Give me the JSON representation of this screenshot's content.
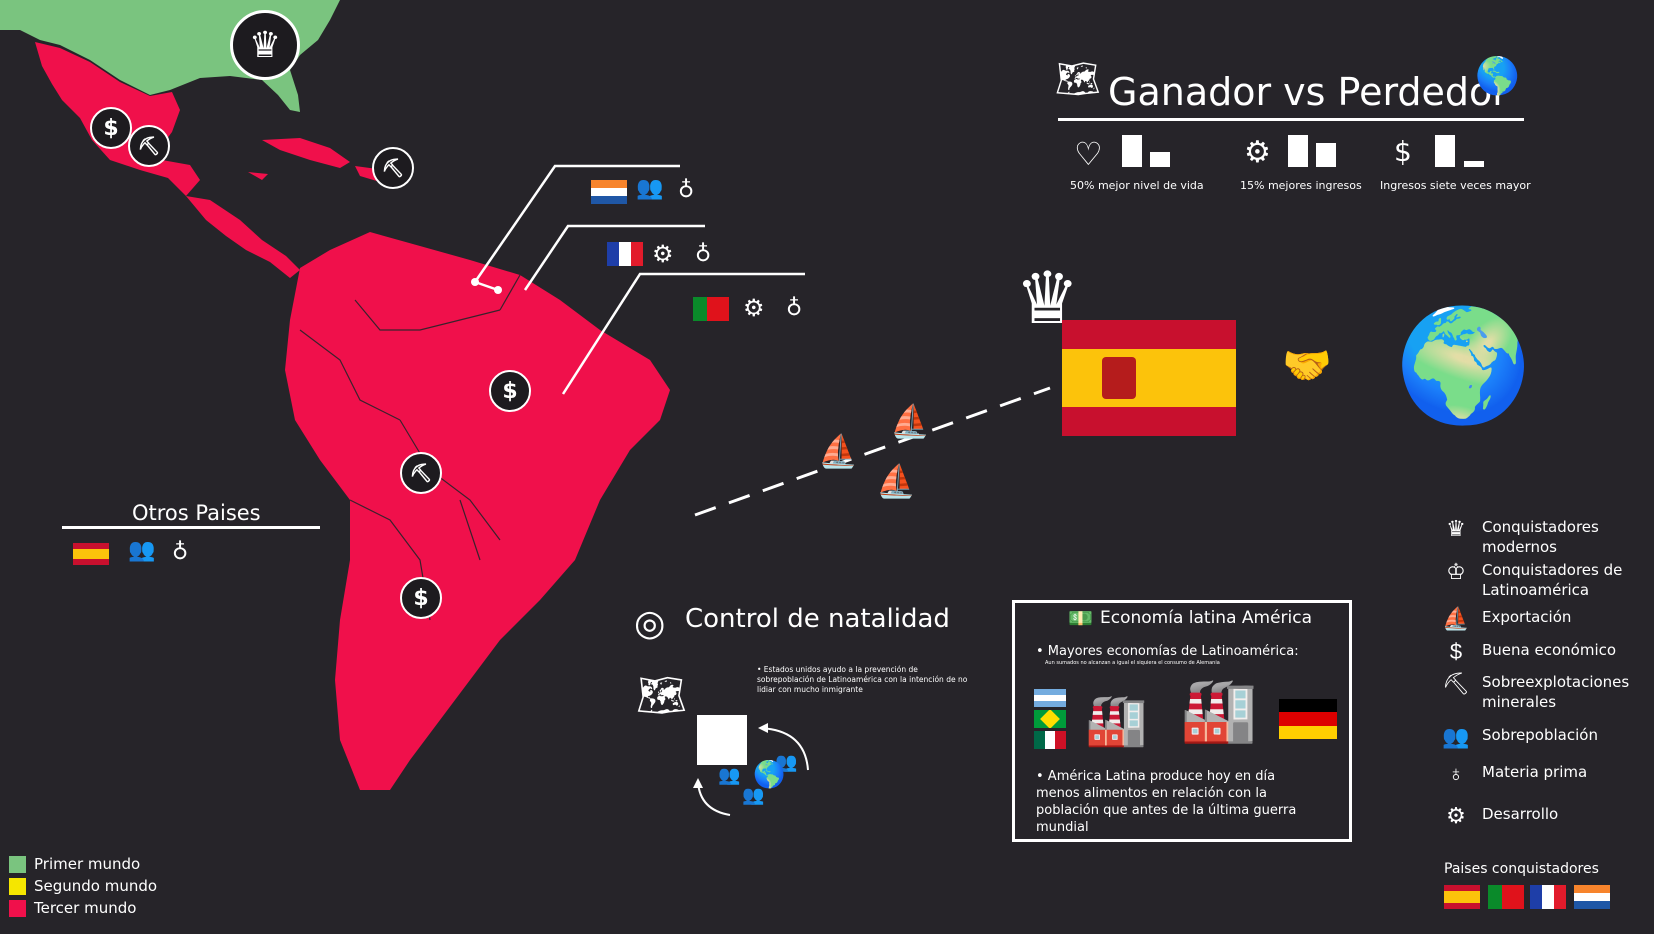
{
  "title": {
    "text": "Ganador vs Perdedor"
  },
  "stats": [
    {
      "label": "50% mejor nivel de vida",
      "icon": "heart-icon"
    },
    {
      "label": "15% mejores ingresos",
      "icon": "gear-icon"
    },
    {
      "label": "Ingresos siete veces mayor",
      "icon": "dollar-icon"
    }
  ],
  "otros": {
    "title": "Otros Paises"
  },
  "natalidad": {
    "title": "Control de natalidad",
    "note": "• Estados unidos ayudo a la prevención de sobrepoblación de Latinoamérica con la intención de no lidiar con mucho inmigrante"
  },
  "economia": {
    "title": "Economía latina América",
    "bullet1": "• Mayores economías de Latinoamérica:",
    "subnote": "Aun sumados no alcanzan a igual el siquiera el consumo de Alemania",
    "bullet2": "• América Latina produce hoy en día menos alimentos en relación con la población que antes de la última guerra mundial"
  },
  "legend": {
    "items": [
      {
        "label": "Primer mundo",
        "color": "#7ac47f"
      },
      {
        "label": "Segundo mundo",
        "color": "#f5e600"
      },
      {
        "label": "Tercer mundo",
        "color": "#f0104b"
      }
    ]
  },
  "right_legend": {
    "items": [
      {
        "label": "Conquistadores modernos",
        "icon": "crown-icon"
      },
      {
        "label": "Conquistadores de Latinoamérica",
        "icon": "crown-small-icon"
      },
      {
        "label": "Exportación",
        "icon": "ship-icon"
      },
      {
        "label": "Buena económico",
        "icon": "dollar-icon"
      },
      {
        "label": "Sobreexplotaciones minerales",
        "icon": "pickaxe-icon"
      },
      {
        "label": "Sobrepoblación",
        "icon": "people-icon"
      },
      {
        "label": "Materia prima",
        "icon": "fruit-icon"
      },
      {
        "label": "Desarrollo",
        "icon": "gear-icon"
      }
    ],
    "conquerors_title": "Paises conquistadores"
  },
  "colors": {
    "background": "#262429",
    "first_world": "#7ac47f",
    "third_world": "#f0104b"
  }
}
